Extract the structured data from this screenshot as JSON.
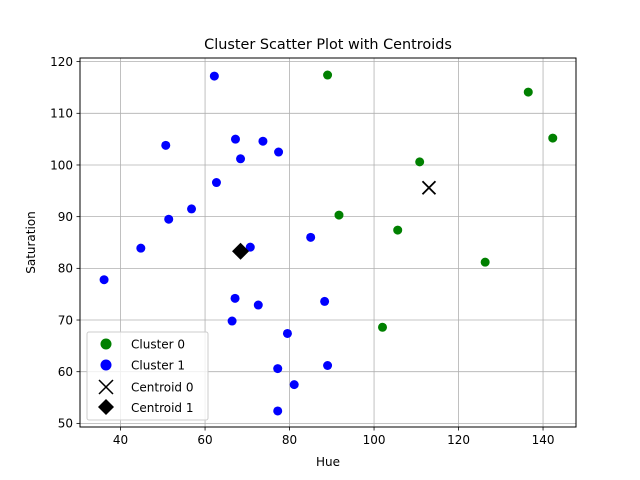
{
  "chart_data": {
    "type": "scatter",
    "title": "Cluster Scatter Plot with Centroids",
    "xlabel": "Hue",
    "ylabel": "Saturation",
    "xlim": [
      30.4,
      147.8
    ],
    "ylim": [
      49.3,
      120.7
    ],
    "xticks": [
      40,
      60,
      80,
      100,
      120,
      140
    ],
    "yticks": [
      50,
      60,
      70,
      80,
      90,
      100,
      110,
      120
    ],
    "grid": true,
    "legend_position": "lower-left",
    "series": [
      {
        "name": "Cluster 0",
        "marker": "circle",
        "color": "#008000",
        "points": [
          [
            89.0,
            117.4
          ],
          [
            136.5,
            114.1
          ],
          [
            142.3,
            105.2
          ],
          [
            110.8,
            100.6
          ],
          [
            91.7,
            90.3
          ],
          [
            105.6,
            87.4
          ],
          [
            126.3,
            81.2
          ],
          [
            102.0,
            68.6
          ]
        ]
      },
      {
        "name": "Cluster 1",
        "marker": "circle",
        "color": "#0000ff",
        "points": [
          [
            62.2,
            117.2
          ],
          [
            67.2,
            105.0
          ],
          [
            73.7,
            104.6
          ],
          [
            50.7,
            103.8
          ],
          [
            77.4,
            102.5
          ],
          [
            68.4,
            101.2
          ],
          [
            62.7,
            96.6
          ],
          [
            56.8,
            91.5
          ],
          [
            51.4,
            89.5
          ],
          [
            85.0,
            86.0
          ],
          [
            70.7,
            84.1
          ],
          [
            44.8,
            83.9
          ],
          [
            36.1,
            77.8
          ],
          [
            67.1,
            74.2
          ],
          [
            88.3,
            73.6
          ],
          [
            72.6,
            72.9
          ],
          [
            66.4,
            69.8
          ],
          [
            79.5,
            67.4
          ],
          [
            89.0,
            61.2
          ],
          [
            77.2,
            60.6
          ],
          [
            81.1,
            57.5
          ],
          [
            77.2,
            52.4
          ]
        ]
      },
      {
        "name": "Centroid 0",
        "marker": "x",
        "color": "#000000",
        "points": [
          [
            113.0,
            95.6
          ]
        ]
      },
      {
        "name": "Centroid 1",
        "marker": "diamond",
        "color": "#000000",
        "points": [
          [
            68.4,
            83.3
          ]
        ]
      }
    ]
  }
}
